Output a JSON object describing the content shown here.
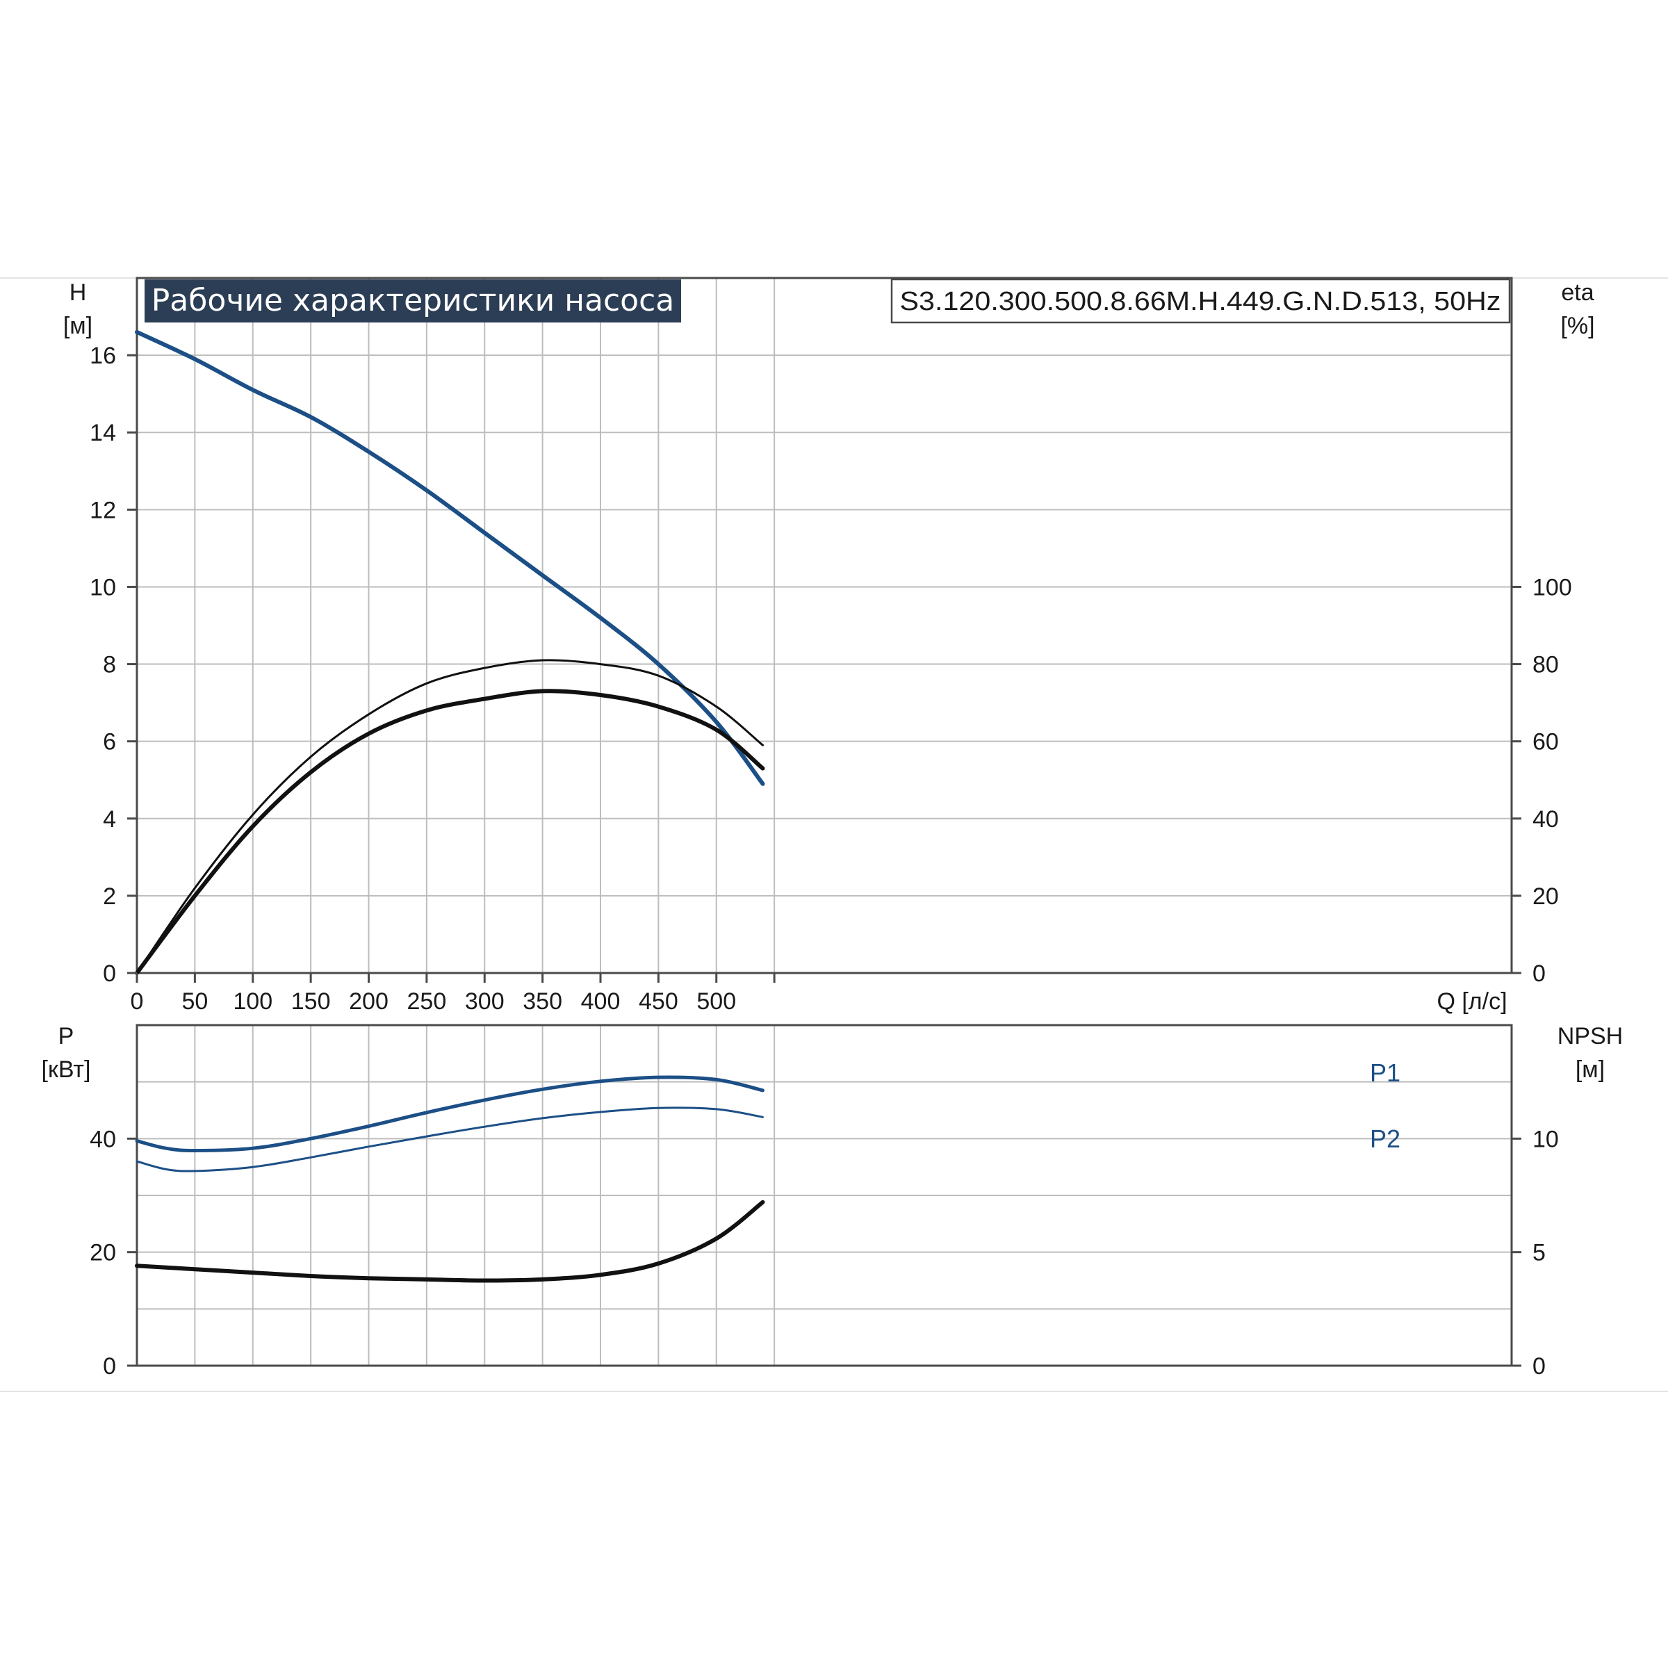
{
  "title": "Рабочие характеристики насоса",
  "model": "S3.120.300.500.8.66M.H.449.G.N.D.513, 50Hz",
  "colors": {
    "blue": "#1c4f86",
    "black": "#111111",
    "grid": "#bdbdbd",
    "title_bg": "#2c3e55"
  },
  "chart_data": [
    {
      "type": "line",
      "title": "Рабочие характеристики насоса",
      "xlabel": "Q [л/с]",
      "x_ticks": [
        "0",
        "50",
        "100",
        "150",
        "200",
        "250",
        "300",
        "350",
        "400",
        "450",
        "500"
      ],
      "xlim": [
        0,
        550
      ],
      "ylabel_left": [
        "H",
        "[м]"
      ],
      "ylim_left": [
        0,
        18
      ],
      "y_ticks_left": [
        "0",
        "2",
        "4",
        "6",
        "8",
        "10",
        "12",
        "14",
        "16"
      ],
      "ylabel_right": [
        "eta",
        "[%]"
      ],
      "ylim_right": [
        0,
        180
      ],
      "y_ticks_right": [
        "0",
        "20",
        "40",
        "60",
        "80",
        "100"
      ],
      "grid": true,
      "series": [
        {
          "axis": "left",
          "color": "#1c4f86",
          "width": 6,
          "x": [
            0,
            50,
            100,
            150,
            200,
            250,
            300,
            350,
            400,
            450,
            500,
            540
          ],
          "y": [
            16.6,
            15.9,
            15.1,
            14.4,
            13.5,
            12.5,
            11.4,
            10.3,
            9.2,
            8.0,
            6.5,
            4.9
          ]
        },
        {
          "axis": "right",
          "color": "#111111",
          "width": 3,
          "x": [
            0,
            50,
            100,
            150,
            200,
            250,
            300,
            350,
            400,
            450,
            500,
            540
          ],
          "y": [
            0,
            22,
            41,
            56,
            67,
            75,
            79,
            81,
            80,
            77,
            69,
            59
          ]
        },
        {
          "axis": "right",
          "color": "#111111",
          "width": 6,
          "x": [
            0,
            50,
            100,
            150,
            200,
            250,
            300,
            350,
            400,
            450,
            500,
            540
          ],
          "y": [
            0,
            20,
            38,
            52,
            62,
            68,
            71,
            73,
            72,
            69,
            63,
            53
          ]
        }
      ]
    },
    {
      "type": "line",
      "ylabel_left": [
        "P",
        "[кВт]"
      ],
      "ylim_left": [
        0,
        60
      ],
      "y_ticks_left": [
        "0",
        "20",
        "40"
      ],
      "ylabel_right": [
        "NPSH",
        "[м]"
      ],
      "ylim_right": [
        0,
        15
      ],
      "y_ticks_right": [
        "0",
        "5",
        "10"
      ],
      "xlim": [
        0,
        550
      ],
      "grid": true,
      "series": [
        {
          "name": "P1",
          "axis": "left",
          "color": "#1c4f86",
          "width": 5,
          "x": [
            0,
            25,
            50,
            100,
            150,
            200,
            250,
            300,
            350,
            400,
            450,
            500,
            540
          ],
          "y": [
            39.6,
            38.3,
            37.9,
            38.3,
            40.0,
            42.2,
            44.6,
            46.8,
            48.7,
            50.1,
            50.8,
            50.4,
            48.5
          ]
        },
        {
          "name": "P2",
          "axis": "left",
          "color": "#1c4f86",
          "width": 3,
          "x": [
            0,
            25,
            50,
            100,
            150,
            200,
            250,
            300,
            350,
            400,
            450,
            500,
            540
          ],
          "y": [
            36.0,
            34.6,
            34.3,
            35.0,
            36.7,
            38.6,
            40.4,
            42.1,
            43.6,
            44.7,
            45.4,
            45.2,
            43.8
          ]
        },
        {
          "axis": "right",
          "color": "#111111",
          "width": 6,
          "x": [
            0,
            50,
            100,
            150,
            200,
            250,
            300,
            350,
            400,
            450,
            500,
            540
          ],
          "y": [
            4.4,
            4.25,
            4.1,
            3.95,
            3.85,
            3.8,
            3.75,
            3.8,
            4.0,
            4.5,
            5.6,
            7.2
          ]
        }
      ]
    }
  ]
}
